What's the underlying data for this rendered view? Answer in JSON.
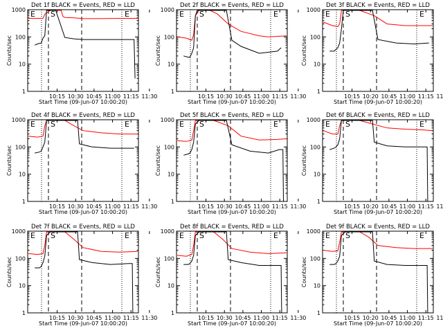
{
  "chart_data": [
    {
      "type": "line",
      "title": "Det 1f BLACK = Events, RED = LLD",
      "xlabel": "Start Time (09-Jun-07 10:00:20)",
      "ylabel": "Counts/sec",
      "xticks": [
        "10:15",
        "10:30",
        "10:45",
        "11:00",
        "11:15",
        "11:30"
      ],
      "yticks": [
        "1",
        "10",
        "100",
        "1000"
      ],
      "ylim": [
        1,
        1000
      ],
      "log_y": true,
      "markers": [
        "E",
        "S",
        "E"
      ],
      "series": [
        {
          "name": "LLD",
          "color": "#ff0000",
          "x": [
            0,
            8,
            9,
            12,
            13,
            15,
            18,
            19,
            20,
            25,
            30,
            40,
            50,
            60
          ],
          "y": [
            480,
            480,
            680,
            1200,
            1000,
            1000,
            1000,
            560,
            520,
            500,
            470,
            470,
            480,
            480
          ]
        },
        {
          "name": "Events",
          "color": "#000000",
          "x": [
            3.5,
            5,
            6,
            7,
            8,
            9,
            10,
            13,
            15,
            20,
            25,
            30,
            40,
            50,
            56,
            58,
            58.5
          ],
          "y": [
            50,
            55,
            58,
            58,
            90,
            110,
            1000,
            1000,
            1000,
            95,
            85,
            80,
            80,
            80,
            80,
            80,
            3
          ]
        }
      ]
    },
    {
      "type": "line",
      "title": "Det 2f BLACK = Events, RED = LLD",
      "xlabel": "Start Time (09-Jun-07 10:00:20)",
      "ylabel": "Counts/sec",
      "xticks": [
        "10:15",
        "10:30",
        "10:45",
        "11:00",
        "11:15",
        "11:30"
      ],
      "yticks": [
        "1",
        "10",
        "100",
        "1000"
      ],
      "ylim": [
        1,
        1000
      ],
      "log_y": true,
      "markers": [
        "E",
        "S",
        "E"
      ],
      "series": [
        {
          "name": "LLD",
          "color": "#ff0000",
          "x": [
            0,
            5,
            7,
            8,
            9,
            10,
            12,
            18,
            22,
            28,
            35,
            45,
            50,
            60
          ],
          "y": [
            100,
            90,
            80,
            75,
            120,
            600,
            1000,
            1000,
            700,
            300,
            160,
            110,
            100,
            110
          ]
        },
        {
          "name": "Events",
          "color": "#000000",
          "x": [
            3.5,
            6,
            7,
            8,
            9,
            10,
            11,
            13,
            27,
            30,
            35,
            45,
            55,
            57
          ],
          "y": [
            20,
            18,
            18,
            25,
            40,
            600,
            1000,
            1000,
            1000,
            75,
            45,
            25,
            30,
            40
          ]
        }
      ]
    },
    {
      "type": "line",
      "title": "Det 3f BLACK = Events, RED = LLD",
      "xlabel": "Start Time (09-Jun-07 10:00:20)",
      "ylabel": "Counts/sec",
      "xticks": [
        "10:15",
        "10:20",
        "10:45",
        "11:00",
        "11:15",
        "11:30"
      ],
      "yticks": [
        "1",
        "10",
        "100",
        "1000"
      ],
      "ylim": [
        1,
        1000
      ],
      "log_y": true,
      "markers": [
        "E",
        "S",
        "E"
      ],
      "series": [
        {
          "name": "LLD",
          "color": "#ff0000",
          "x": [
            0,
            5,
            8,
            9,
            10,
            12,
            20,
            28,
            35,
            45,
            60
          ],
          "y": [
            350,
            260,
            240,
            300,
            1000,
            1000,
            1000,
            600,
            300,
            260,
            260
          ]
        },
        {
          "name": "Events",
          "color": "#000000",
          "x": [
            3.5,
            6,
            7,
            8,
            9,
            10,
            11,
            13,
            27,
            30,
            40,
            50,
            58
          ],
          "y": [
            30,
            30,
            35,
            40,
            60,
            200,
            1000,
            1000,
            1000,
            80,
            60,
            55,
            60
          ]
        }
      ]
    },
    {
      "type": "line",
      "title": "Det 4f BLACK = Events, RED = LLD",
      "xlabel": "Start Time (09-Jun-07 10:00:20)",
      "ylabel": "Counts/sec",
      "xticks": [
        "10:15",
        "10:30",
        "10:45",
        "11:00",
        "11:15",
        "11:30"
      ],
      "yticks": [
        "1",
        "10",
        "100",
        "1000"
      ],
      "ylim": [
        1,
        1000
      ],
      "log_y": true,
      "markers": [
        "E",
        "S",
        "E"
      ],
      "series": [
        {
          "name": "LLD",
          "color": "#ff0000",
          "x": [
            0,
            5,
            8,
            9,
            10,
            13,
            20,
            25,
            30,
            40,
            50,
            60
          ],
          "y": [
            250,
            230,
            250,
            600,
            1000,
            1000,
            1000,
            600,
            400,
            330,
            300,
            300
          ]
        },
        {
          "name": "Events",
          "color": "#000000",
          "x": [
            3.5,
            6,
            7,
            8,
            9,
            10,
            13,
            27,
            28,
            35,
            45,
            55,
            58
          ],
          "y": [
            60,
            65,
            70,
            100,
            150,
            1000,
            1000,
            1000,
            130,
            100,
            90,
            90,
            90
          ]
        }
      ]
    },
    {
      "type": "line",
      "title": "Det 5f BLACK = Events, RED = LLD",
      "xlabel": "Start Time (09-Jun-07 10:00:20)",
      "ylabel": "Counts/sec",
      "xticks": [
        "10:15",
        "10:30",
        "10:45",
        "11:00",
        "11:15",
        "11:30"
      ],
      "yticks": [
        "1",
        "10",
        "100",
        "1000"
      ],
      "ylim": [
        1,
        1000
      ],
      "log_y": true,
      "markers": [
        "E",
        "S",
        "E"
      ],
      "series": [
        {
          "name": "LLD",
          "color": "#ff0000",
          "x": [
            0,
            5,
            8,
            9,
            10,
            12,
            20,
            28,
            35,
            45,
            55,
            60
          ],
          "y": [
            170,
            160,
            180,
            400,
            1000,
            1000,
            1000,
            600,
            250,
            180,
            190,
            200
          ]
        },
        {
          "name": "Events",
          "color": "#000000",
          "x": [
            3.5,
            6,
            7,
            8,
            9,
            10,
            12,
            27,
            30,
            40,
            50,
            56,
            58,
            58.3
          ],
          "y": [
            50,
            55,
            60,
            80,
            150,
            700,
            1000,
            1000,
            120,
            70,
            60,
            80,
            80,
            1
          ]
        }
      ]
    },
    {
      "type": "line",
      "title": "Det 6f BLACK = Events, RED = LLD",
      "xlabel": "Start Time (09-Jun-07 10:00:20)",
      "ylabel": "Counts/sec",
      "xticks": [
        "10:15",
        "10:20",
        "10:45",
        "11:00",
        "11:15",
        "11:30"
      ],
      "yticks": [
        "1",
        "10",
        "100",
        "1000"
      ],
      "ylim": [
        1,
        1000
      ],
      "log_y": true,
      "markers": [
        "E",
        "S",
        "E"
      ],
      "series": [
        {
          "name": "LLD",
          "color": "#ff0000",
          "x": [
            0,
            5,
            8,
            9,
            10,
            12,
            20,
            27,
            35,
            45,
            55,
            60
          ],
          "y": [
            400,
            300,
            300,
            600,
            1000,
            1000,
            1000,
            700,
            500,
            450,
            420,
            400
          ]
        },
        {
          "name": "Events",
          "color": "#000000",
          "x": [
            3.5,
            6,
            7,
            8,
            9,
            10,
            12,
            27,
            28,
            35,
            45,
            55,
            57,
            57.3
          ],
          "y": [
            80,
            90,
            100,
            120,
            200,
            1000,
            1000,
            1000,
            150,
            110,
            100,
            100,
            100,
            1
          ]
        }
      ]
    },
    {
      "type": "line",
      "title": "Det 7f BLACK = Events, RED = LLD",
      "xlabel": "Start Time (09-Jun-07 10:00:20)",
      "ylabel": "Counts/sec",
      "xticks": [
        "10:15",
        "10:30",
        "10:45",
        "11:00",
        "11:15",
        "11:30"
      ],
      "yticks": [
        "1",
        "10",
        "100",
        "1000"
      ],
      "ylim": [
        1,
        1000
      ],
      "log_y": true,
      "markers": [
        "E",
        "S",
        "E"
      ],
      "series": [
        {
          "name": "LLD",
          "color": "#ff0000",
          "x": [
            0,
            5,
            8,
            9,
            10,
            12,
            20,
            25,
            30,
            40,
            50,
            60
          ],
          "y": [
            150,
            140,
            150,
            300,
            1000,
            1000,
            1000,
            500,
            250,
            180,
            170,
            180
          ]
        },
        {
          "name": "Events",
          "color": "#000000",
          "x": [
            3.5,
            6,
            7,
            8,
            9,
            10,
            12,
            27,
            28,
            35,
            45,
            55,
            57,
            57.3
          ],
          "y": [
            45,
            45,
            50,
            70,
            120,
            700,
            1000,
            1000,
            90,
            70,
            60,
            65,
            65,
            1
          ]
        }
      ]
    },
    {
      "type": "line",
      "title": "Det 8f BLACK = Events, RED = LLD",
      "xlabel": "Start Time (09-Jun-07 10:00:20)",
      "ylabel": "Counts/sec",
      "xticks": [
        "10:15",
        "10:30",
        "10:45",
        "11:00",
        "11:15",
        "11:30"
      ],
      "yticks": [
        "1",
        "10",
        "100",
        "1000"
      ],
      "ylim": [
        1,
        1000
      ],
      "log_y": true,
      "markers": [
        "E",
        "S",
        "E"
      ],
      "series": [
        {
          "name": "LLD",
          "color": "#ff0000",
          "x": [
            0,
            5,
            8,
            9,
            10,
            12,
            20,
            25,
            30,
            40,
            50,
            60
          ],
          "y": [
            130,
            120,
            140,
            300,
            1000,
            1000,
            1000,
            500,
            230,
            170,
            150,
            160
          ]
        },
        {
          "name": "Events",
          "color": "#000000",
          "x": [
            3.5,
            6,
            7,
            8,
            9,
            10,
            12,
            27,
            28,
            35,
            45,
            55,
            57,
            57.3
          ],
          "y": [
            60,
            60,
            65,
            80,
            130,
            700,
            1000,
            1000,
            90,
            70,
            55,
            55,
            55,
            1
          ]
        }
      ]
    },
    {
      "type": "line",
      "title": "Det 9f BLACK = Events, RED = LLD",
      "xlabel": "Start Time (09-Jun-07 10:00:20)",
      "ylabel": "Counts/sec",
      "xticks": [
        "10:15",
        "10:20",
        "10:45",
        "11:00",
        "11:15",
        "11:30"
      ],
      "yticks": [
        "1",
        "10",
        "100",
        "1000"
      ],
      "ylim": [
        1,
        1000
      ],
      "log_y": true,
      "markers": [
        "E",
        "S",
        "E"
      ],
      "series": [
        {
          "name": "LLD",
          "color": "#ff0000",
          "x": [
            0,
            5,
            8,
            9,
            10,
            12,
            20,
            25,
            30,
            40,
            50,
            60
          ],
          "y": [
            200,
            180,
            190,
            400,
            1000,
            1000,
            1000,
            600,
            300,
            250,
            230,
            230
          ]
        },
        {
          "name": "Events",
          "color": "#000000",
          "x": [
            3.5,
            6,
            7,
            8,
            9,
            10,
            12,
            27,
            28,
            35,
            45,
            55,
            57,
            57.3
          ],
          "y": [
            60,
            60,
            65,
            80,
            120,
            700,
            1000,
            1000,
            80,
            60,
            55,
            55,
            55,
            1
          ]
        }
      ]
    }
  ]
}
